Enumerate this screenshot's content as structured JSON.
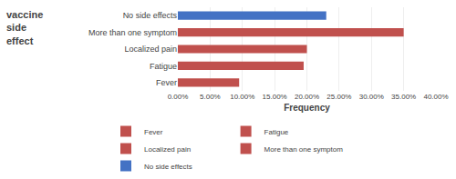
{
  "chart_data": {
    "type": "bar",
    "orientation": "horizontal",
    "categories": [
      "Fever",
      "Fatigue",
      "Localized pain",
      "More than one symptom",
      "No side effects"
    ],
    "values": [
      9.5,
      19.5,
      20.0,
      35.0,
      23.0
    ],
    "colors": [
      "#C0504D",
      "#C0504D",
      "#C0504D",
      "#C0504D",
      "#4472C4"
    ],
    "xlabel": "Frequency",
    "ylabel": "vaccine\nside\neffect",
    "xlim": [
      0,
      40
    ],
    "xticks": [
      {
        "value": 0,
        "label": "0.00%"
      },
      {
        "value": 5,
        "label": "5.00%"
      },
      {
        "value": 10,
        "label": "10.00%"
      },
      {
        "value": 15,
        "label": "15.00%"
      },
      {
        "value": 20,
        "label": "20.00%"
      },
      {
        "value": 25,
        "label": "25.00%"
      },
      {
        "value": 30,
        "label": "30.00%"
      },
      {
        "value": 35,
        "label": "35.00%"
      },
      {
        "value": 40,
        "label": "40.00%"
      }
    ],
    "grid": true,
    "legend": "bottom"
  }
}
